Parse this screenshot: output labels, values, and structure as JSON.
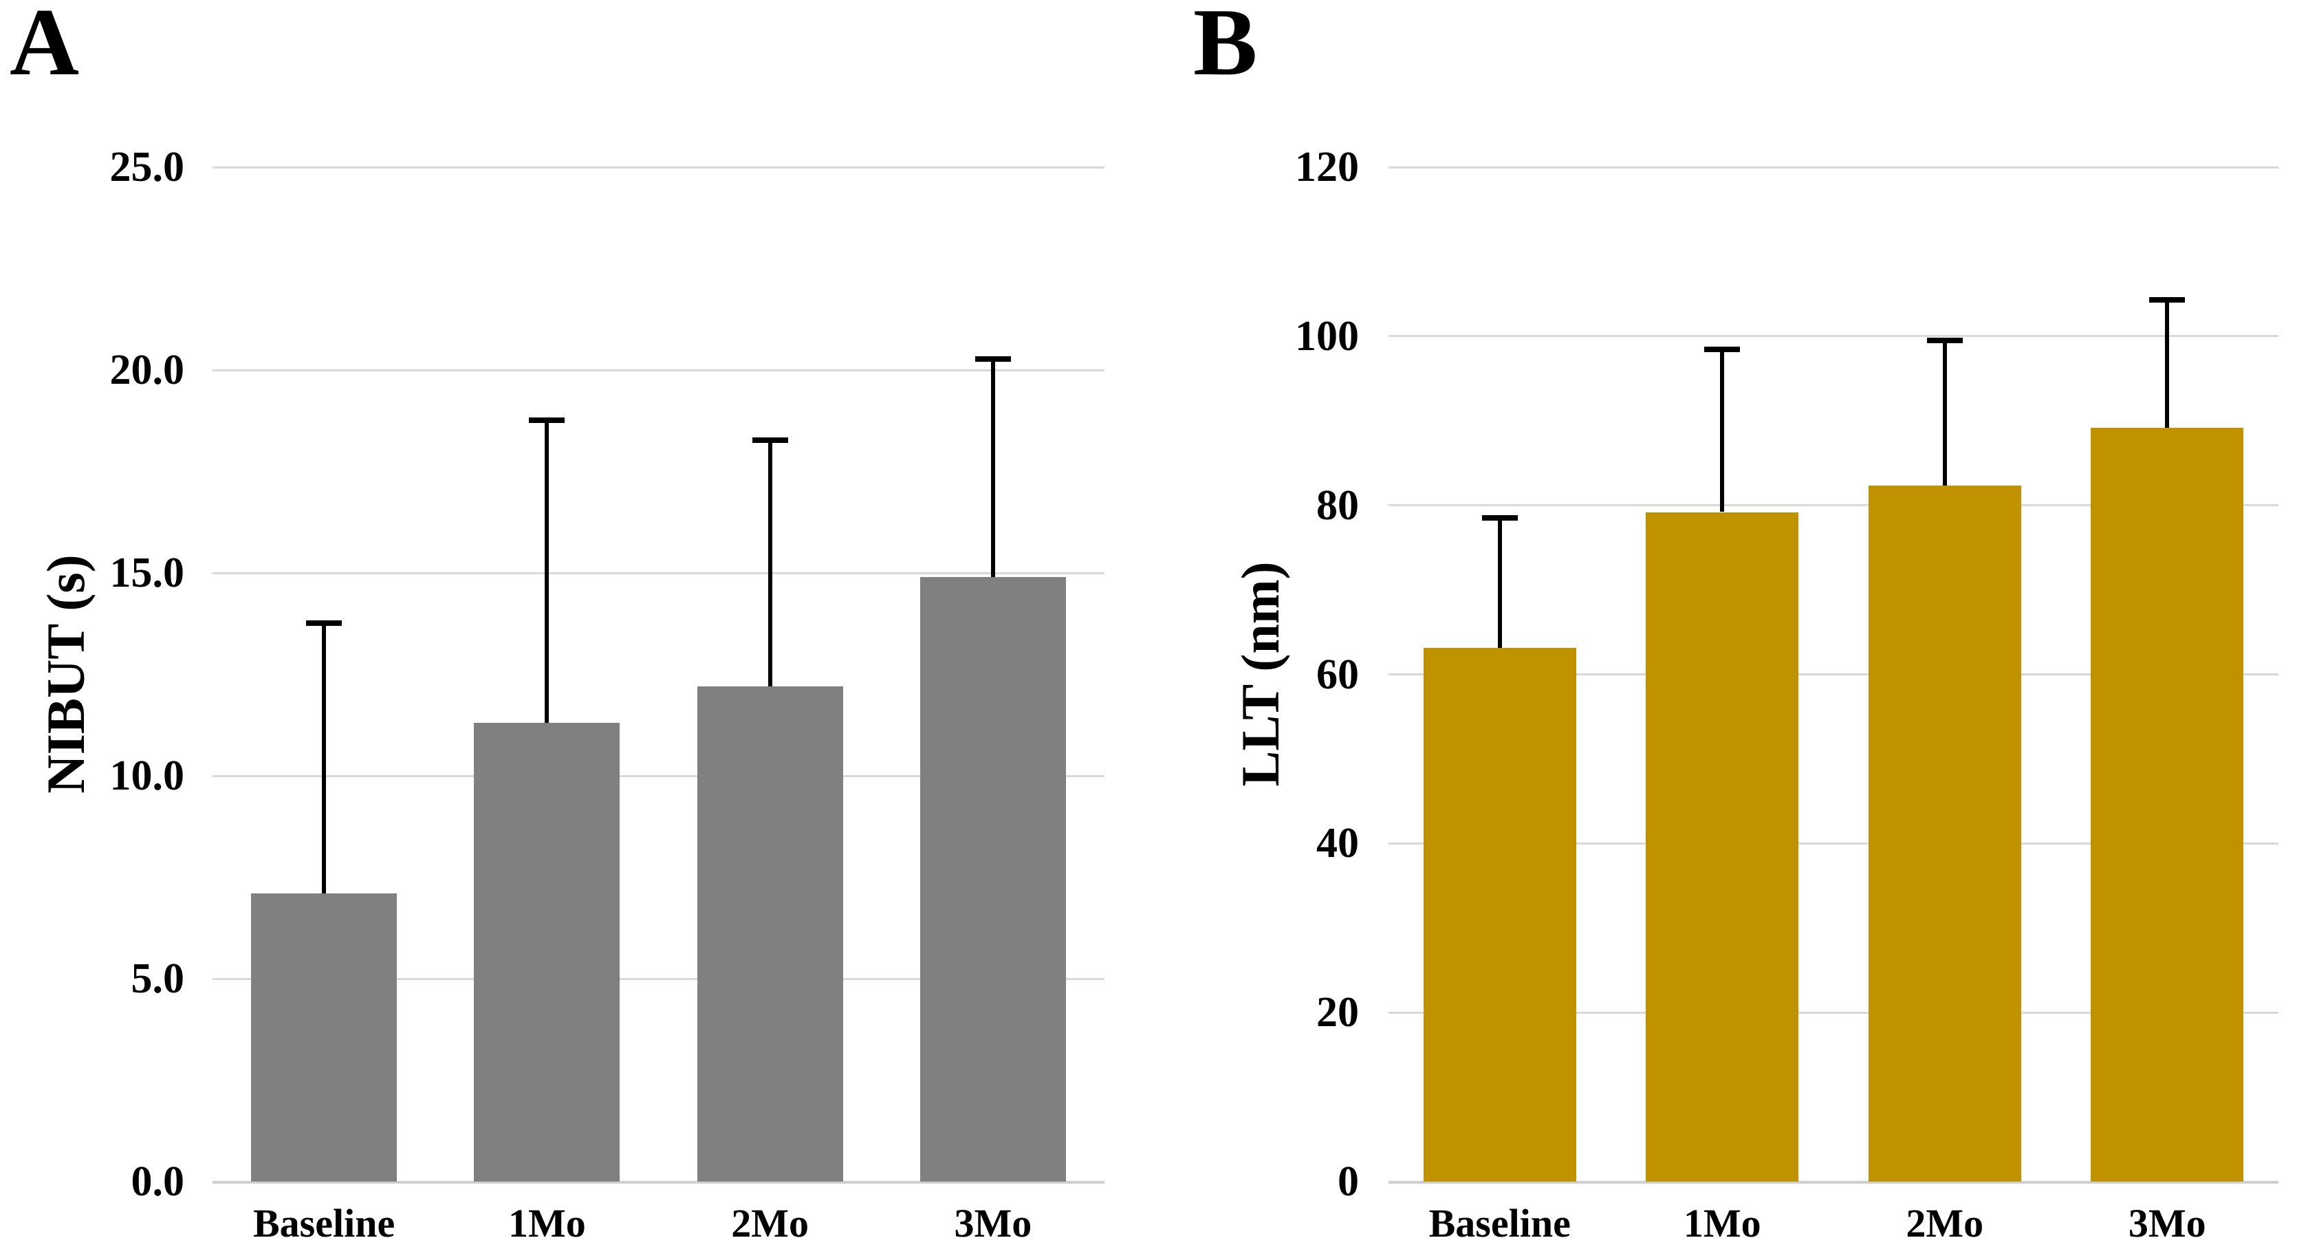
{
  "figure": {
    "background_color": "#FFFFFF",
    "grid_color": "#D9D9D9",
    "axis_line_color": "#CFCFCF",
    "error_bar_color": "#000000",
    "text_color": "#000000"
  },
  "chart_data": [
    {
      "type": "bar",
      "panel_letter": "A",
      "title": "",
      "xlabel": "",
      "ylabel": "NIBUT (s)",
      "categories": [
        "Baseline",
        "1Mo",
        "2Mo",
        "3Mo"
      ],
      "values": [
        7.1,
        11.3,
        12.2,
        14.9
      ],
      "errors_upper": [
        6.7,
        7.5,
        6.1,
        5.4
      ],
      "bar_color": "#808080",
      "ylim": [
        0,
        25
      ],
      "ytick_step": 5,
      "ytick_labels": [
        "0.0",
        "5.0",
        "10.0",
        "15.0",
        "20.0",
        "25.0"
      ],
      "grid": true,
      "legend_position": "none",
      "error_bars": "upper-only"
    },
    {
      "type": "bar",
      "panel_letter": "B",
      "title": "",
      "xlabel": "",
      "ylabel": "LLT (nm)",
      "categories": [
        "Baseline",
        "1Mo",
        "2Mo",
        "3Mo"
      ],
      "values": [
        63.1,
        79.2,
        82.3,
        89.2
      ],
      "errors_upper": [
        15.6,
        19.4,
        17.4,
        15.3
      ],
      "bar_color": "#C09200",
      "ylim": [
        0,
        120
      ],
      "ytick_step": 20,
      "ytick_labels": [
        "0",
        "20",
        "40",
        "60",
        "80",
        "100",
        "120"
      ],
      "grid": true,
      "legend_position": "none",
      "error_bars": "upper-only"
    }
  ]
}
